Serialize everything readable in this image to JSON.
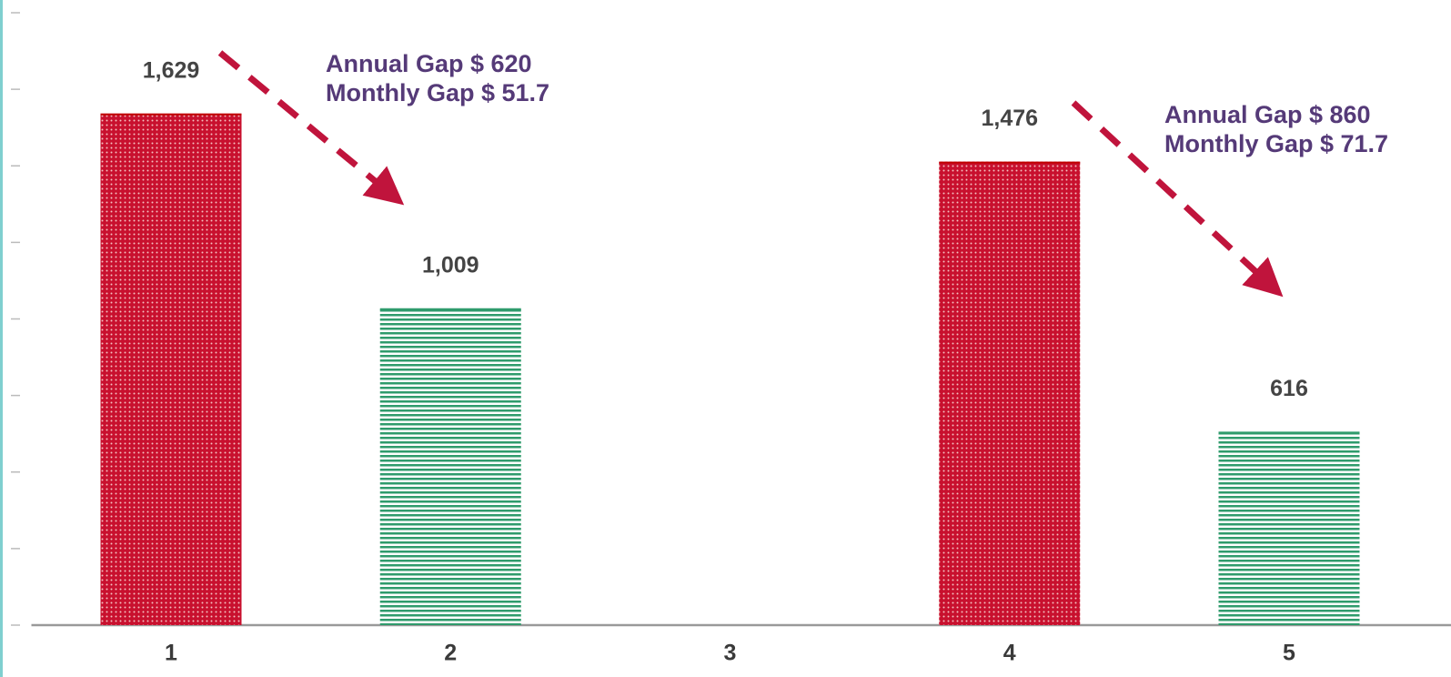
{
  "chart_data": {
    "type": "bar",
    "categories": [
      "1",
      "2",
      "3",
      "4",
      "5"
    ],
    "values": [
      1629,
      1009,
      null,
      1476,
      616
    ],
    "value_labels": [
      "1,629",
      "1,009",
      null,
      "1,476",
      "616"
    ],
    "colors": [
      "#c00000",
      "#2f9b6c",
      null,
      "#c00000",
      "#2f9b6c"
    ],
    "ylim": [
      0,
      1950
    ],
    "yticks": [
      0,
      243.75,
      487.5,
      731.25,
      975,
      1218.75,
      1462.5,
      1706.25,
      1950
    ],
    "annotations": [
      [
        "Annual Gap $ 620",
        "Monthly Gap $ 51.7"
      ],
      [
        "Annual Gap $ 860",
        "Monthly Gap $ 71.7"
      ]
    ]
  }
}
